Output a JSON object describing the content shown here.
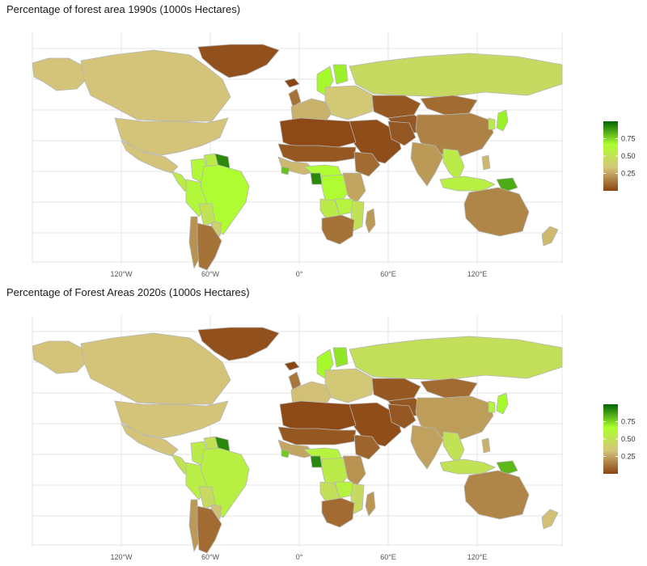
{
  "maps": [
    {
      "title": "Percentage of forest area 1990s (1000s Hectares)",
      "fills": {
        "greenland": 0.03,
        "canada": 0.33,
        "alaska": 0.33,
        "usa": 0.33,
        "mexico": 0.33,
        "central_america": 0.55,
        "colombia": 0.62,
        "venezuela": 0.55,
        "guianas": 0.92,
        "brazil": 0.65,
        "peru": 0.62,
        "bolivia": 0.5,
        "paraguay": 0.4,
        "argentina": 0.12,
        "chile": 0.2,
        "iceland": 0.0,
        "uk": 0.12,
        "scandinavia": 0.68,
        "finland": 0.7,
        "w_europe": 0.28,
        "e_europe": 0.35,
        "russia": 0.45,
        "kazakhstan": 0.05,
        "central_asia": 0.05,
        "mongolia": 0.1,
        "china": 0.16,
        "japan": 0.7,
        "korea": 0.55,
        "middle_east": 0.02,
        "iran": 0.05,
        "india": 0.22,
        "se_asia": 0.55,
        "indonesia": 0.58,
        "png": 0.85,
        "australia": 0.17,
        "nz": 0.3,
        "n_africa": 0.01,
        "sahel": 0.05,
        "w_africa": 0.3,
        "liberia": 0.8,
        "horn_africa": 0.1,
        "central_africa": 0.65,
        "gabon": 0.92,
        "congo_drc": 0.65,
        "e_africa": 0.25,
        "angola": 0.55,
        "zambia": 0.6,
        "mozambique": 0.5,
        "southern_africa": 0.12,
        "madagascar": 0.22,
        "philippines": 0.3
      }
    },
    {
      "title": "Percentage of Forest Areas 2020s (1000s Hectares)",
      "fills": {
        "greenland": 0.03,
        "canada": 0.33,
        "alaska": 0.33,
        "usa": 0.33,
        "mexico": 0.33,
        "central_america": 0.5,
        "colombia": 0.55,
        "venezuela": 0.5,
        "guianas": 0.92,
        "brazil": 0.58,
        "peru": 0.57,
        "bolivia": 0.45,
        "paraguay": 0.32,
        "argentina": 0.1,
        "chile": 0.22,
        "iceland": 0.0,
        "uk": 0.13,
        "scandinavia": 0.68,
        "finland": 0.72,
        "w_europe": 0.32,
        "e_europe": 0.35,
        "russia": 0.48,
        "kazakhstan": 0.05,
        "central_asia": 0.05,
        "mongolia": 0.1,
        "china": 0.23,
        "japan": 0.68,
        "korea": 0.6,
        "middle_east": 0.02,
        "iran": 0.05,
        "india": 0.24,
        "se_asia": 0.5,
        "indonesia": 0.5,
        "png": 0.82,
        "australia": 0.17,
        "nz": 0.32,
        "n_africa": 0.01,
        "sahel": 0.05,
        "w_africa": 0.25,
        "liberia": 0.78,
        "horn_africa": 0.08,
        "central_africa": 0.6,
        "gabon": 0.92,
        "congo_drc": 0.55,
        "e_africa": 0.2,
        "angola": 0.48,
        "zambia": 0.6,
        "mozambique": 0.45,
        "southern_africa": 0.1,
        "madagascar": 0.21,
        "philippines": 0.28
      }
    }
  ],
  "x_ticks": [
    "120°W",
    "60°W",
    "0°",
    "60°E",
    "120°E"
  ],
  "legend": {
    "ticks": [
      "0.75",
      "0.50",
      "0.25"
    ],
    "tick_values": [
      0.75,
      0.5,
      0.25
    ],
    "range": [
      0,
      1
    ],
    "colors": [
      "#8b4513",
      "#d4c57a",
      "#adff2f",
      "#006400"
    ]
  },
  "colors": {
    "background": "#ffffff",
    "grid": "#e6e6e6",
    "border": "#b5b5b5"
  }
}
